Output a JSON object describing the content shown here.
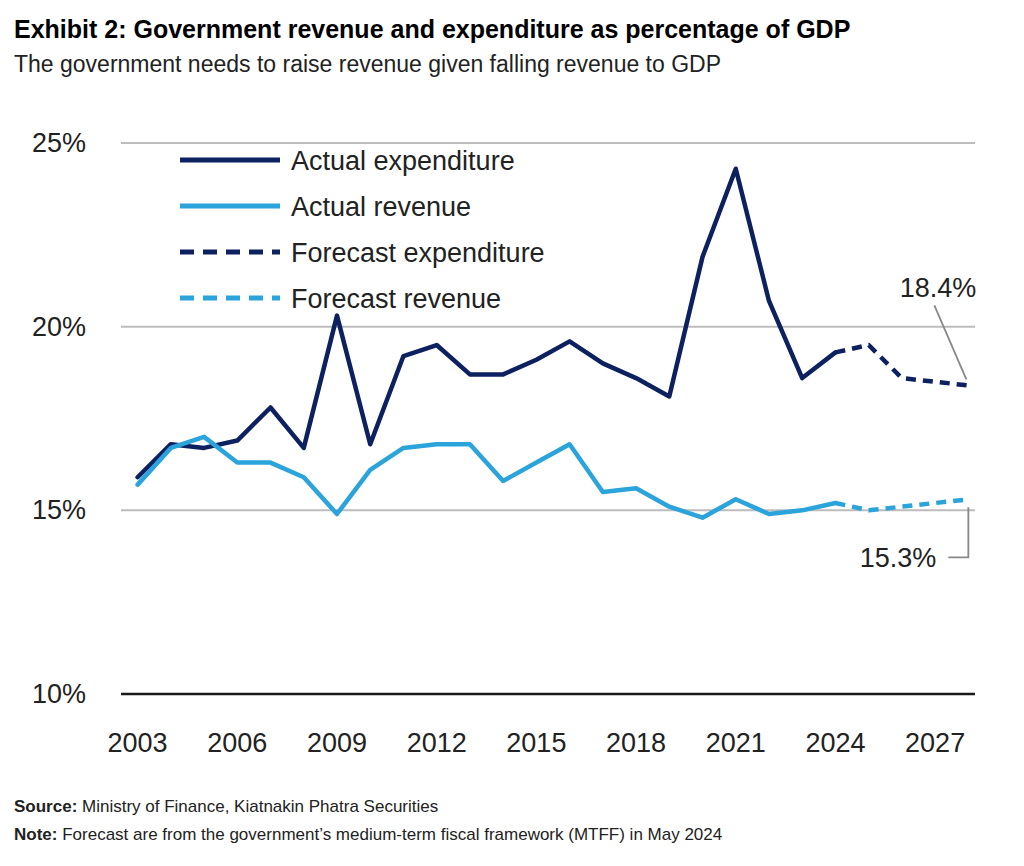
{
  "chart_data": {
    "type": "line",
    "title": "Exhibit 2: Government revenue and expenditure as percentage of GDP",
    "subtitle": "The government needs to raise revenue given falling revenue to GDP",
    "source": "Source: Ministry of Finance, Kiatnakin Phatra Securities",
    "note": "Note: Forecast are from the government’s medium-term fiscal framework (MTFF) in May 2024",
    "x": [
      2003,
      2004,
      2005,
      2006,
      2007,
      2008,
      2009,
      2010,
      2011,
      2012,
      2013,
      2014,
      2015,
      2016,
      2017,
      2018,
      2019,
      2020,
      2021,
      2022,
      2023,
      2024,
      2025,
      2026,
      2027,
      2028
    ],
    "series": [
      {
        "name": "Actual expenditure",
        "color": "#0d2160",
        "line_style": "solid",
        "values": [
          15.9,
          16.8,
          16.7,
          16.9,
          17.8,
          16.7,
          20.3,
          16.8,
          19.2,
          19.5,
          18.7,
          18.7,
          19.1,
          19.6,
          19.0,
          18.6,
          18.1,
          21.9,
          24.3,
          20.7,
          18.6,
          19.3,
          null,
          null,
          null,
          null
        ]
      },
      {
        "name": "Actual revenue",
        "color": "#2ba3db",
        "line_style": "solid",
        "values": [
          15.7,
          16.7,
          17.0,
          16.3,
          16.3,
          15.9,
          14.9,
          16.1,
          16.7,
          16.8,
          16.8,
          15.8,
          16.3,
          16.8,
          15.5,
          15.6,
          15.1,
          14.8,
          15.3,
          14.9,
          15.0,
          15.2,
          null,
          null,
          null,
          null
        ]
      },
      {
        "name": "Forecast expenditure",
        "color": "#0d2160",
        "line_style": "dashed",
        "values": [
          null,
          null,
          null,
          null,
          null,
          null,
          null,
          null,
          null,
          null,
          null,
          null,
          null,
          null,
          null,
          null,
          null,
          null,
          null,
          null,
          null,
          19.3,
          19.5,
          18.6,
          18.5,
          18.4
        ],
        "value_labels": [
          null,
          null,
          null,
          null,
          null,
          null,
          null,
          null,
          null,
          null,
          null,
          null,
          null,
          null,
          null,
          null,
          null,
          null,
          null,
          null,
          null,
          null,
          null,
          null,
          null,
          "18.4%"
        ]
      },
      {
        "name": "Forecast revenue",
        "color": "#2ba3db",
        "line_style": "dashed",
        "values": [
          null,
          null,
          null,
          null,
          null,
          null,
          null,
          null,
          null,
          null,
          null,
          null,
          null,
          null,
          null,
          null,
          null,
          null,
          null,
          null,
          null,
          15.2,
          15.0,
          15.1,
          15.2,
          15.3
        ],
        "value_labels": [
          null,
          null,
          null,
          null,
          null,
          null,
          null,
          null,
          null,
          null,
          null,
          null,
          null,
          null,
          null,
          null,
          null,
          null,
          null,
          null,
          null,
          null,
          null,
          null,
          null,
          "15.3%"
        ]
      }
    ],
    "xlim": [
      2002.5,
      2028.2
    ],
    "xticks": [
      2003,
      2006,
      2009,
      2012,
      2015,
      2018,
      2021,
      2024,
      2027
    ],
    "ylim": [
      10,
      25
    ],
    "yticks": [
      {
        "value": 10,
        "label": "10%"
      },
      {
        "value": 15,
        "label": "15%"
      },
      {
        "value": 20,
        "label": "20%"
      },
      {
        "value": 25,
        "label": "25%"
      }
    ],
    "grid": true,
    "legend": "upper left"
  }
}
